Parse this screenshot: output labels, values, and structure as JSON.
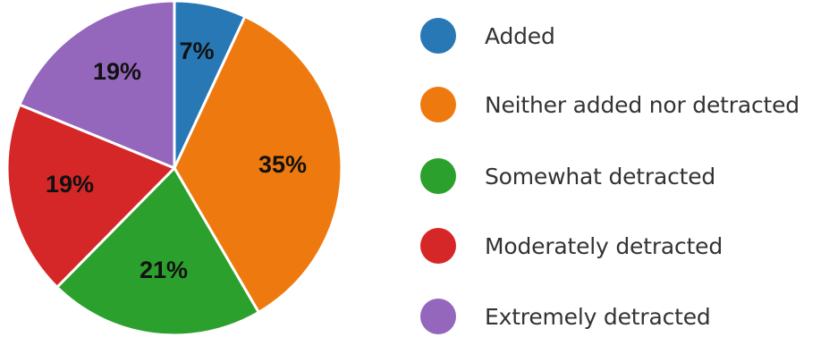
{
  "chart_data": {
    "type": "pie",
    "title": "",
    "legend_position": "right",
    "start_angle": "top",
    "direction": "clockwise",
    "slices": [
      {
        "name": "Added",
        "value": 7,
        "label": "7%",
        "color": "#2878b5"
      },
      {
        "name": "Neither added nor detracted",
        "value": 35,
        "label": "35%",
        "color": "#ee7a0f"
      },
      {
        "name": "Somewhat detracted",
        "value": 21,
        "label": "21%",
        "color": "#2ca02c"
      },
      {
        "name": "Moderately detracted",
        "value": 19,
        "label": "19%",
        "color": "#d62728"
      },
      {
        "name": "Extremely detracted",
        "value": 19,
        "label": "19%",
        "color": "#9467bd"
      }
    ]
  }
}
